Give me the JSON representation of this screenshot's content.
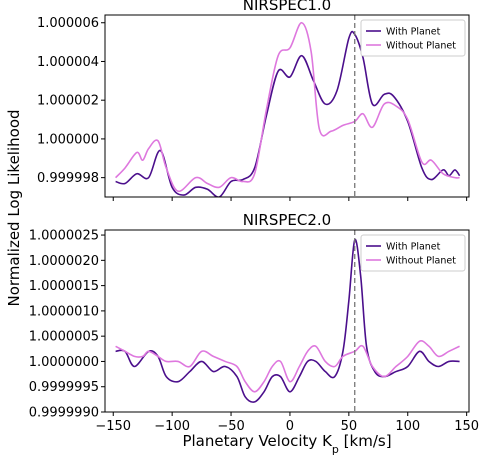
{
  "figure": {
    "xlabel": "Planetary Velocity K",
    "xlabel_sub": "p",
    "xlabel_unit": " [km/s]",
    "ylabel": "Normalized Log Likelihood"
  },
  "chart_data": [
    {
      "type": "line",
      "title": "NIRSPEC1.0",
      "xlim": [
        -157,
        152
      ],
      "ylim": [
        0.999997,
        1.0000064
      ],
      "x_ticks": [
        -150,
        -100,
        -50,
        0,
        50,
        100,
        150
      ],
      "y_ticks": [
        0.999998,
        1.0,
        1.000002,
        1.000004,
        1.000006
      ],
      "y_tick_labels": [
        "0.999998",
        "1.000000",
        "1.000002",
        "1.000004",
        "1.000006"
      ],
      "show_x_tick_labels": false,
      "vline_x": 55,
      "legend_position": "top-right",
      "series": [
        {
          "name": "With Planet",
          "color": "#4b0f8c",
          "points": [
            [
              -148,
              0.9999978
            ],
            [
              -140,
              0.9999977
            ],
            [
              -130,
              0.9999982
            ],
            [
              -120,
              0.999998
            ],
            [
              -110,
              0.9999994
            ],
            [
              -100,
              0.9999975
            ],
            [
              -90,
              0.9999971
            ],
            [
              -80,
              0.9999975
            ],
            [
              -70,
              0.9999974
            ],
            [
              -60,
              0.999997
            ],
            [
              -50,
              0.9999978
            ],
            [
              -40,
              0.9999979
            ],
            [
              -30,
              0.9999985
            ],
            [
              -20,
              1.0000012
            ],
            [
              -10,
              1.0000035
            ],
            [
              0,
              1.0000032
            ],
            [
              10,
              1.0000043
            ],
            [
              20,
              1.000003
            ],
            [
              30,
              1.0000018
            ],
            [
              40,
              1.0000025
            ],
            [
              50,
              1.0000052
            ],
            [
              55,
              1.0000054
            ],
            [
              62,
              1.0000042
            ],
            [
              70,
              1.0000018
            ],
            [
              80,
              1.0000023
            ],
            [
              88,
              1.0000022
            ],
            [
              100,
              1.0000009
            ],
            [
              112,
              0.9999985
            ],
            [
              120,
              0.9999979
            ],
            [
              130,
              0.9999984
            ],
            [
              135,
              0.9999981
            ],
            [
              140,
              0.9999984
            ],
            [
              144,
              0.9999981
            ]
          ]
        },
        {
          "name": "Without Planet",
          "color": "#de78de",
          "points": [
            [
              -148,
              0.999998
            ],
            [
              -140,
              0.9999985
            ],
            [
              -130,
              0.9999993
            ],
            [
              -125,
              0.9999989
            ],
            [
              -120,
              0.9999995
            ],
            [
              -112,
              0.9999999
            ],
            [
              -105,
              0.9999985
            ],
            [
              -95,
              0.9999973
            ],
            [
              -80,
              0.999998
            ],
            [
              -70,
              0.9999977
            ],
            [
              -60,
              0.9999975
            ],
            [
              -50,
              0.999998
            ],
            [
              -40,
              0.9999978
            ],
            [
              -30,
              0.9999982
            ],
            [
              -20,
              1.0000015
            ],
            [
              -10,
              1.0000043
            ],
            [
              0,
              1.0000047
            ],
            [
              10,
              1.000006
            ],
            [
              18,
              1.0000045
            ],
            [
              25,
              1.0000005
            ],
            [
              35,
              1.0000004
            ],
            [
              45,
              1.0000007
            ],
            [
              55,
              1.0000009
            ],
            [
              62,
              1.0000013
            ],
            [
              70,
              1.0000006
            ],
            [
              80,
              1.0000018
            ],
            [
              90,
              1.0000017
            ],
            [
              100,
              1.000001
            ],
            [
              112,
              0.9999988
            ],
            [
              120,
              0.9999989
            ],
            [
              130,
              0.9999982
            ],
            [
              140,
              0.999998
            ],
            [
              144,
              0.999998
            ]
          ]
        }
      ]
    },
    {
      "type": "line",
      "title": "NIRSPEC2.0",
      "xlim": [
        -157,
        152
      ],
      "ylim": [
        0.999999,
        1.0000026
      ],
      "x_ticks": [
        -150,
        -100,
        -50,
        0,
        50,
        100,
        150
      ],
      "y_ticks": [
        0.999999,
        0.9999995,
        1.0,
        1.0000005,
        1.000001,
        1.0000015,
        1.000002,
        1.0000025
      ],
      "y_tick_labels": [
        "0.9999990",
        "0.9999995",
        "1.0000000",
        "1.0000005",
        "1.0000010",
        "1.0000015",
        "1.0000020",
        "1.0000025"
      ],
      "x_tick_labels": [
        "−150",
        "−100",
        "−50",
        "0",
        "50",
        "100",
        "150"
      ],
      "show_x_tick_labels": true,
      "vline_x": 55,
      "legend_position": "top-right",
      "series": [
        {
          "name": "With Planet",
          "color": "#4b0f8c",
          "points": [
            [
              -148,
              1.0000002
            ],
            [
              -140,
              1.0000002
            ],
            [
              -132,
              0.9999999
            ],
            [
              -120,
              1.0000002
            ],
            [
              -112,
              1.0000001
            ],
            [
              -105,
              0.9999997
            ],
            [
              -95,
              0.9999996
            ],
            [
              -85,
              0.9999998
            ],
            [
              -75,
              1.0
            ],
            [
              -65,
              0.9999998
            ],
            [
              -55,
              0.9999999
            ],
            [
              -45,
              0.9999997
            ],
            [
              -38,
              0.9999993
            ],
            [
              -30,
              0.9999992
            ],
            [
              -22,
              0.9999994
            ],
            [
              -15,
              0.9999997
            ],
            [
              -8,
              0.9999997
            ],
            [
              0,
              0.9999994
            ],
            [
              8,
              0.9999997
            ],
            [
              15,
              1.0
            ],
            [
              22,
              1.0
            ],
            [
              30,
              0.9999998
            ],
            [
              38,
              0.9999997
            ],
            [
              45,
              1.0000002
            ],
            [
              50,
              1.0000012
            ],
            [
              55,
              1.0000024
            ],
            [
              60,
              1.0000017
            ],
            [
              65,
              1.0000003
            ],
            [
              72,
              0.9999998
            ],
            [
              80,
              0.9999997
            ],
            [
              90,
              0.9999998
            ],
            [
              100,
              0.9999999
            ],
            [
              110,
              1.0000002
            ],
            [
              118,
              1.0
            ],
            [
              126,
              0.9999999
            ],
            [
              135,
              1.0
            ],
            [
              144,
              1.0
            ]
          ]
        },
        {
          "name": "Without Planet",
          "color": "#de78de",
          "points": [
            [
              -148,
              1.0000003
            ],
            [
              -140,
              1.0000002
            ],
            [
              -132,
              1.0000001
            ],
            [
              -125,
              1.0000001
            ],
            [
              -120,
              1.0000002
            ],
            [
              -112,
              1.0000001
            ],
            [
              -105,
              1.0
            ],
            [
              -95,
              1.0
            ],
            [
              -85,
              0.9999999
            ],
            [
              -75,
              1.0000002
            ],
            [
              -65,
              1.0000001
            ],
            [
              -55,
              1.0
            ],
            [
              -45,
              0.9999999
            ],
            [
              -38,
              0.9999996
            ],
            [
              -30,
              0.9999994
            ],
            [
              -22,
              0.9999996
            ],
            [
              -15,
              0.9999999
            ],
            [
              -8,
              1.0
            ],
            [
              0,
              0.9999996
            ],
            [
              8,
              0.9999999
            ],
            [
              15,
              1.0000002
            ],
            [
              22,
              1.0000003
            ],
            [
              30,
              1.0
            ],
            [
              38,
              0.9999999
            ],
            [
              45,
              1.0000001
            ],
            [
              55,
              1.0000002
            ],
            [
              62,
              1.0000003
            ],
            [
              70,
              0.9999999
            ],
            [
              80,
              0.9999997
            ],
            [
              90,
              0.9999999
            ],
            [
              100,
              1.0000001
            ],
            [
              110,
              1.0000004
            ],
            [
              118,
              1.0000003
            ],
            [
              126,
              1.0000001
            ],
            [
              135,
              1.0000002
            ],
            [
              144,
              1.0000003
            ]
          ]
        }
      ]
    }
  ]
}
